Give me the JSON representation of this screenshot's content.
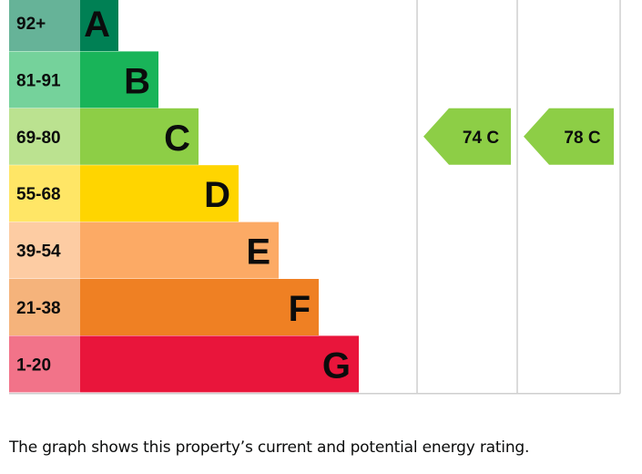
{
  "chart_data": {
    "type": "bar",
    "title": "",
    "categories": [
      "A",
      "B",
      "C",
      "D",
      "E",
      "F",
      "G"
    ],
    "ranges": [
      "92+",
      "81-91",
      "69-80",
      "55-68",
      "39-54",
      "21-38",
      "1-20"
    ],
    "values": [
      1,
      2,
      3,
      4,
      5,
      6,
      7
    ],
    "band_colors": [
      "#008054",
      "#19b459",
      "#8dce46",
      "#ffd500",
      "#fcaa65",
      "#ef8023",
      "#e9153b"
    ],
    "range_colors": [
      "#66b398",
      "#75d29b",
      "#bbe290",
      "#ffe666",
      "#fdcca3",
      "#f5b37b",
      "#f27389"
    ],
    "ratings": [
      {
        "name": "Current",
        "value": 74,
        "band": "C",
        "label": "74 C",
        "color": "#8dce46"
      },
      {
        "name": "Potential",
        "value": 78,
        "band": "C",
        "label": "78 C",
        "color": "#8dce46"
      }
    ]
  },
  "caption": "The graph shows this property’s current and potential energy rating."
}
